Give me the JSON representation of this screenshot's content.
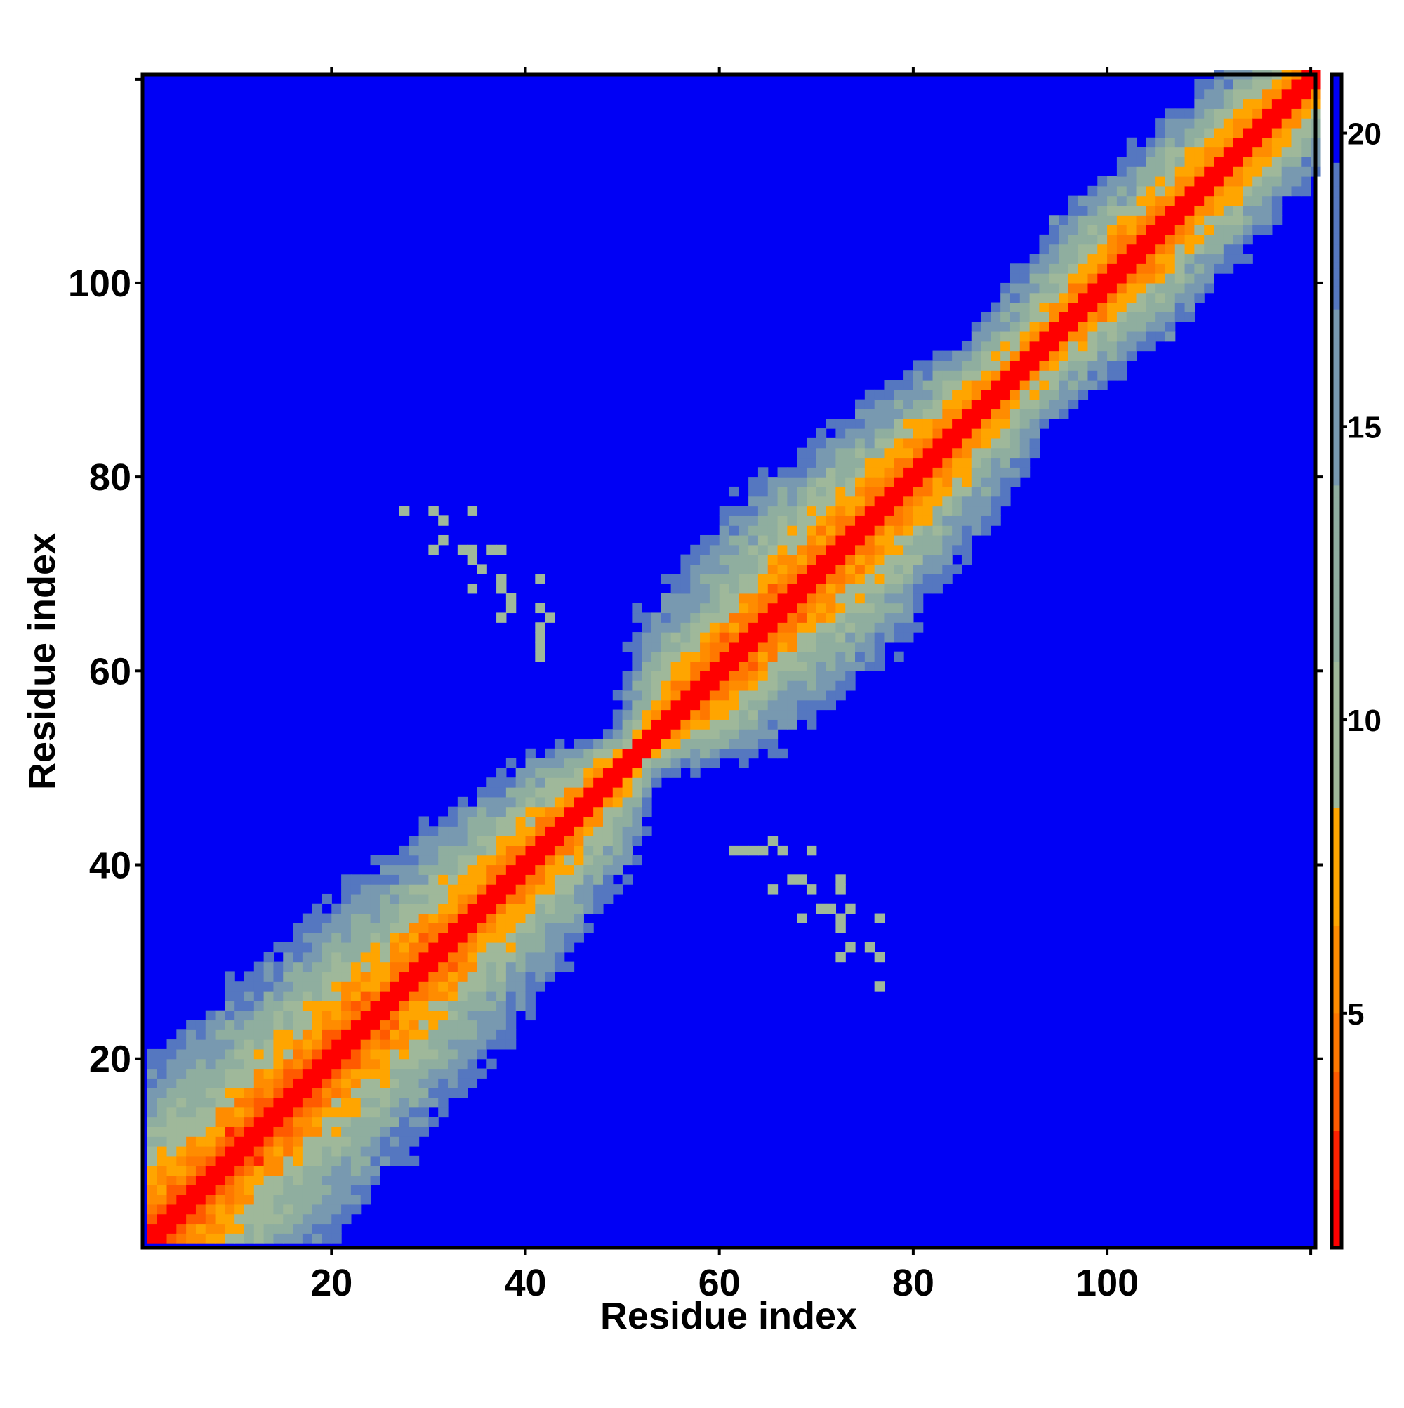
{
  "chart_data": {
    "type": "heatmap",
    "title": "",
    "xlabel": "Residue index",
    "ylabel": "Residue index",
    "n_residues": 121,
    "xlim": [
      1,
      121
    ],
    "ylim": [
      1,
      121
    ],
    "x_ticks": [
      20,
      40,
      60,
      80,
      100
    ],
    "y_ticks": [
      20,
      40,
      60,
      80,
      100
    ],
    "colorbar": {
      "ticks": [
        5,
        10,
        15,
        20
      ],
      "range": [
        1,
        21
      ],
      "levels": [
        {
          "max": 2,
          "color": "#ff0000"
        },
        {
          "max": 3,
          "color": "#ff2200"
        },
        {
          "max": 4,
          "color": "#ff5a00"
        },
        {
          "max": 5,
          "color": "#ff7800"
        },
        {
          "max": 6.5,
          "color": "#ff8c00"
        },
        {
          "max": 8.5,
          "color": "#ffa500"
        },
        {
          "max": 11,
          "color": "#9fb89a"
        },
        {
          "max": 14,
          "color": "#8fae9f"
        },
        {
          "max": 17,
          "color": "#7899b0"
        },
        {
          "max": 19.5,
          "color": "#5577c0"
        },
        {
          "max": 99,
          "color": "#0000f5"
        }
      ]
    },
    "background_color": "#0000f5",
    "diagonal_profile": [
      {
        "i": 1,
        "halfwidth": 16
      },
      {
        "i": 12,
        "halfwidth": 15
      },
      {
        "i": 30,
        "halfwidth": 13
      },
      {
        "i": 45,
        "halfwidth": 9
      },
      {
        "i": 51,
        "halfwidth": 4
      },
      {
        "i": 58,
        "halfwidth": 11
      },
      {
        "i": 70,
        "halfwidth": 13
      },
      {
        "i": 82,
        "halfwidth": 10
      },
      {
        "i": 90,
        "halfwidth": 7
      },
      {
        "i": 100,
        "halfwidth": 10
      },
      {
        "i": 110,
        "halfwidth": 9
      },
      {
        "i": 121,
        "halfwidth": 8
      }
    ],
    "offdiagonal_contacts": [
      [
        27,
        76
      ],
      [
        30,
        76
      ],
      [
        34,
        76
      ],
      [
        31,
        75
      ],
      [
        31,
        73
      ],
      [
        30,
        72
      ],
      [
        33,
        72
      ],
      [
        34,
        72
      ],
      [
        36,
        72
      ],
      [
        37,
        72
      ],
      [
        34,
        71
      ],
      [
        35,
        70
      ],
      [
        41,
        69
      ],
      [
        37,
        69
      ],
      [
        34,
        68
      ],
      [
        37,
        68
      ],
      [
        38,
        67
      ],
      [
        38,
        66
      ],
      [
        41,
        66
      ],
      [
        42,
        65
      ],
      [
        37,
        65
      ],
      [
        41,
        64
      ],
      [
        41,
        63
      ],
      [
        41,
        62
      ],
      [
        41,
        61
      ],
      [
        61,
        41
      ],
      [
        62,
        41
      ],
      [
        63,
        41
      ],
      [
        64,
        41
      ],
      [
        65,
        42
      ],
      [
        66,
        41
      ],
      [
        69,
        41
      ],
      [
        65,
        37
      ],
      [
        67,
        38
      ],
      [
        68,
        38
      ],
      [
        69,
        37
      ],
      [
        72,
        38
      ],
      [
        72,
        37
      ],
      [
        68,
        34
      ],
      [
        70,
        35
      ],
      [
        71,
        35
      ],
      [
        72,
        34
      ],
      [
        73,
        35
      ],
      [
        76,
        34
      ],
      [
        72,
        33
      ],
      [
        73,
        31
      ],
      [
        72,
        30
      ],
      [
        75,
        31
      ],
      [
        76,
        30
      ],
      [
        76,
        27
      ]
    ]
  }
}
